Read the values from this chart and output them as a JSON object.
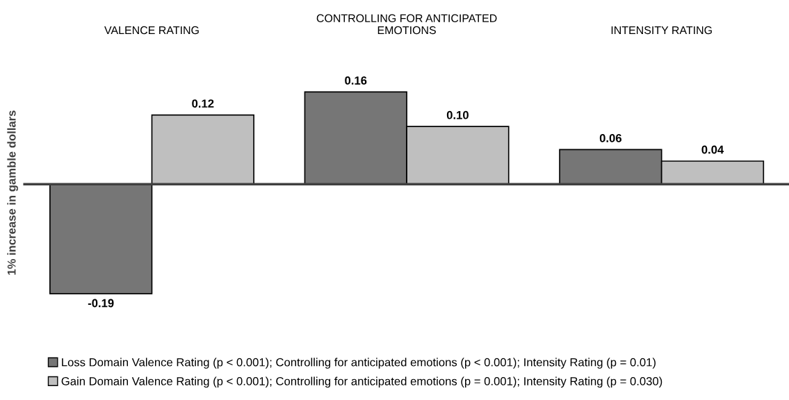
{
  "chart_data": {
    "type": "bar",
    "categories": [
      "VALENCE RATING",
      "CONTROLLING FOR ANTICIPATED\nEMOTIONS",
      "INTENSITY RATING"
    ],
    "ylabel": "1% increase in gamble dollars",
    "series": [
      {
        "name": "Loss Domain Valence Rating (p < 0.001); Controlling for anticipated emotions (p < 0.001); Intensity Rating (p = 0.01)",
        "color": "#767676",
        "values": [
          -0.19,
          0.16,
          0.06
        ],
        "value_labels": [
          "-0.19",
          "0.16",
          "0.06"
        ]
      },
      {
        "name": "Gain Domain Valence Rating (p < 0.001); Controlling for anticipated emotions (p = 0.001); Intensity Rating (p = 0.030)",
        "color": "#bfbfbf",
        "values": [
          0.12,
          0.1,
          0.04
        ],
        "value_labels": [
          "0.12",
          "0.10",
          "0.04"
        ]
      }
    ],
    "tick_labels": "x",
    "legend": "bottom"
  }
}
